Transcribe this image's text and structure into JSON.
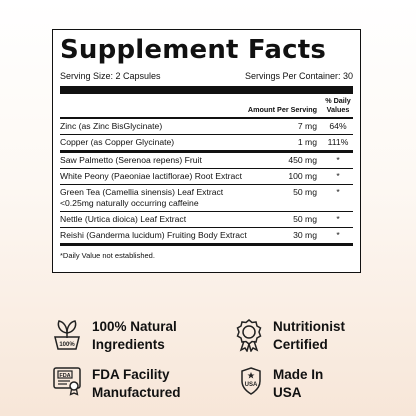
{
  "panel": {
    "title": "Supplement Facts",
    "serving_size": "Serving Size: 2 Capsules",
    "servings_per_container": "Servings Per Container: 30",
    "col_amount": "Amount Per Serving",
    "col_dv_line1": "% Daily",
    "col_dv_line2": "Values",
    "rows": [
      {
        "name": "Zinc (as Zinc BisGlycinate)",
        "amount": "7 mg",
        "dv": "64%"
      },
      {
        "name": "Copper (as Copper Glycinate)",
        "amount": "1 mg",
        "dv": "111%"
      },
      {
        "name": "Saw Palmetto (Serenoa repens) Fruit",
        "amount": "450 mg",
        "dv": "*"
      },
      {
        "name": "White Peony (Paeoniae lactiflorae) Root Extract",
        "amount": "100 mg",
        "dv": "*"
      },
      {
        "name": "Green Tea (Camellia sinensis) Leaf Extract",
        "name2": "<0.25mg naturally occurring caffeine",
        "amount": "50 mg",
        "dv": "*"
      },
      {
        "name": "Nettle (Urtica dioica) Leaf Extract",
        "amount": "50 mg",
        "dv": "*"
      },
      {
        "name": "Reishi (Ganderma lucidum) Fruiting Body Extract",
        "amount": "30 mg",
        "dv": "*"
      }
    ],
    "footnote": "*Daily Value not established."
  },
  "features": [
    {
      "line1": "100% Natural",
      "line2": "Ingredients",
      "icon": "natural-leaf-icon",
      "badge_text": "100%"
    },
    {
      "line1": "Nutritionist",
      "line2": "Certified",
      "icon": "certified-medal-icon"
    },
    {
      "line1": "FDA Facility",
      "line2": "Manufactured",
      "icon": "fda-certificate-icon",
      "badge_text": "FDA"
    },
    {
      "line1": "Made In",
      "line2": "USA",
      "icon": "usa-shield-icon",
      "badge_text": "USA"
    }
  ]
}
